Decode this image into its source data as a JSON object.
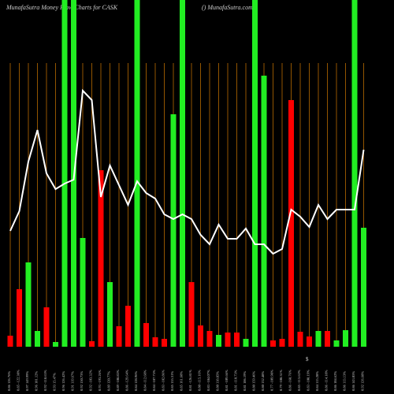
{
  "chart_data": {
    "type": "bar",
    "title": "MunafaSutra  Money Flow  Charts for CASK",
    "subtitle": "() MunafaSutra.com",
    "annotation": "$",
    "categories": [
      "0.86 126.76%",
      "0.85 -122.30%",
      "0.97 149.99%",
      "0.96 101.12%",
      "0.92 -118.63%",
      "0.93 15.47%",
      "0.96 126.42%",
      "0.91 119.67%",
      "0.92 150.73%",
      "0.92 -103.32%",
      "0.93 -193.26%",
      "0.89 120.77%",
      "0.89 -108.83%",
      "0.86 -129.64%",
      "0.84 128.96%",
      "0.84 -112.68%",
      "0.84 -107.73%",
      "0.83 -102.86%",
      "0.85 155.31%",
      "0.85 161.68%",
      "0.81 -126.81%",
      "0.80 -115.16%",
      "0.83 -104.07%",
      "0.80 118.85%",
      "0.81 -109.66%",
      "0.81 -110.73%",
      "0.81 106.19%",
      "0.80 159.46%",
      "0.80 132.48%",
      "0.77 -109.98%",
      "0.79 -108.31%",
      "0.86 -168.76%",
      "0.85 -113.62%",
      "0.83 -108.19%",
      "0.84 115.28%",
      "0.86 -114.18%",
      "0.86 104.62%",
      "0.86 113.13%",
      "0.86 143.05%",
      "0.92 126.68%"
    ],
    "series": [
      {
        "type": "bar",
        "values": [
          14,
          73,
          107,
          20,
          50,
          6,
          440,
          440,
          138,
          7,
          224,
          82,
          26,
          52,
          440,
          30,
          12,
          10,
          295,
          440,
          82,
          27,
          20,
          15,
          18,
          18,
          10,
          440,
          344,
          8,
          10,
          313,
          19,
          13,
          20,
          20,
          8,
          21,
          440,
          151
        ],
        "colors": [
          "#ff0000",
          "#ff0000",
          "#22ee22",
          "#22ee22",
          "#ff0000",
          "#22ee22",
          "#22ee22",
          "#22ee22",
          "#22ee22",
          "#ff0000",
          "#ff0000",
          "#22ee22",
          "#ff0000",
          "#ff0000",
          "#22ee22",
          "#ff0000",
          "#ff0000",
          "#ff0000",
          "#22ee22",
          "#22ee22",
          "#ff0000",
          "#ff0000",
          "#ff0000",
          "#22ee22",
          "#ff0000",
          "#ff0000",
          "#22ee22",
          "#22ee22",
          "#22ee22",
          "#ff0000",
          "#ff0000",
          "#ff0000",
          "#ff0000",
          "#ff0000",
          "#22ee22",
          "#ff0000",
          "#22ee22",
          "#22ee22",
          "#22ee22",
          "#22ee22"
        ]
      },
      {
        "type": "line",
        "color": "#ffffff",
        "values": [
          147,
          172,
          235,
          275,
          220,
          200,
          207,
          212,
          325,
          313,
          190,
          230,
          205,
          180,
          210,
          195,
          188,
          168,
          162,
          168,
          162,
          142,
          130,
          155,
          137,
          137,
          150,
          130,
          130,
          118,
          124,
          174,
          165,
          152,
          180,
          162,
          174,
          174,
          174,
          250
        ]
      }
    ],
    "ylim": [
      0,
      440
    ],
    "grid_color": "#b86b00"
  }
}
